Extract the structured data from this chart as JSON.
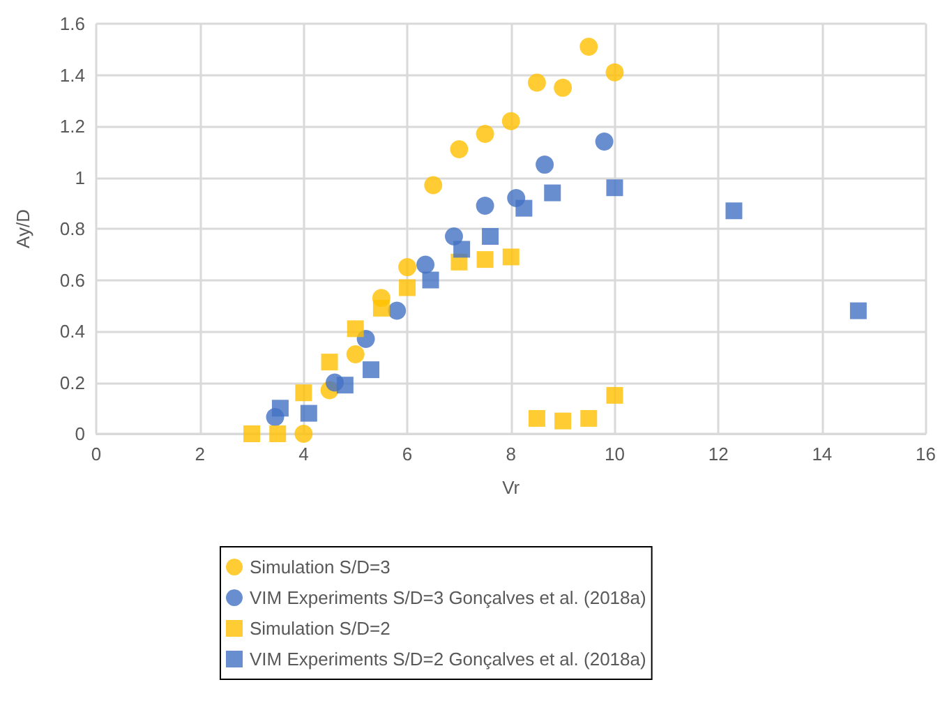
{
  "chart_data": {
    "type": "scatter",
    "xlabel": "Vr",
    "ylabel": "Ay/D",
    "xlim": [
      0,
      16
    ],
    "xticks": [
      0,
      2,
      4,
      6,
      8,
      10,
      12,
      14,
      16
    ],
    "ylim": [
      0,
      1.6
    ],
    "yticks": [
      0,
      0.2,
      0.4,
      0.6,
      0.8,
      1,
      1.2,
      1.4,
      1.6
    ],
    "grid": true,
    "legend": "bottom",
    "series": [
      {
        "name": "Simulation S/D=3",
        "color": "#ffc000",
        "marker": "circle",
        "x": [
          4.0,
          4.5,
          5.0,
          5.5,
          6.0,
          6.5,
          7.0,
          7.5,
          8.0,
          8.5,
          9.0,
          9.5,
          10.0
        ],
        "values": [
          0.0,
          0.17,
          0.31,
          0.53,
          0.65,
          0.97,
          1.11,
          1.17,
          1.22,
          1.37,
          1.35,
          1.51,
          1.41
        ]
      },
      {
        "name": "VIM Experiments S/D=3 Gonçalves et al. (2018a)",
        "color": "#4472c4",
        "marker": "circle",
        "x": [
          3.45,
          4.6,
          5.2,
          5.8,
          6.35,
          6.9,
          7.5,
          8.1,
          8.65,
          9.8
        ],
        "values": [
          0.065,
          0.2,
          0.37,
          0.48,
          0.66,
          0.77,
          0.89,
          0.92,
          1.05,
          1.14
        ]
      },
      {
        "name": "Simulation S/D=2",
        "color": "#ffc000",
        "marker": "square",
        "x": [
          3.0,
          3.5,
          4.0,
          4.5,
          5.0,
          5.5,
          6.0,
          6.5,
          7.0,
          7.5,
          8.0,
          8.5,
          9.0,
          9.5,
          10.0
        ],
        "values": [
          0.0,
          0.0,
          0.16,
          0.28,
          0.41,
          0.49,
          0.57,
          null,
          0.67,
          0.68,
          0.69,
          0.06,
          0.05,
          0.06,
          0.15
        ]
      },
      {
        "name": "VIM Experiments S/D=2 Gonçalves et al. (2018a)",
        "color": "#4472c4",
        "marker": "square",
        "x": [
          3.55,
          4.1,
          4.8,
          5.3,
          6.45,
          7.05,
          7.6,
          8.25,
          8.8,
          10.0,
          12.3,
          14.7
        ],
        "values": [
          0.1,
          0.08,
          0.19,
          0.25,
          0.6,
          0.72,
          0.77,
          0.88,
          0.94,
          0.96,
          0.87,
          0.48
        ]
      }
    ]
  }
}
